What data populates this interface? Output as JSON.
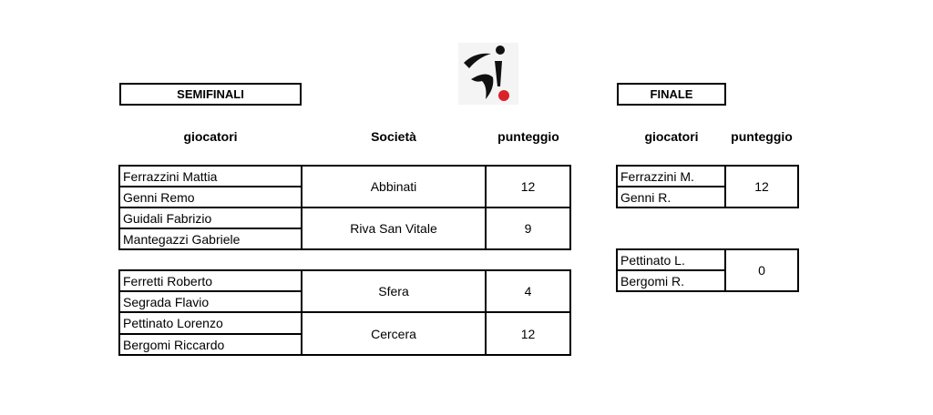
{
  "semifinali": {
    "title": "SEMIFINALI",
    "headers": {
      "giocatori": "giocatori",
      "societa": "Società",
      "punteggio": "punteggio"
    },
    "groups": [
      {
        "matches": [
          {
            "players": [
              "Ferrazzini Mattia",
              "Genni Remo"
            ],
            "societa": "Abbinati",
            "punteggio": "12"
          },
          {
            "players": [
              "Guidali Fabrizio",
              "Mantegazzi Gabriele"
            ],
            "societa": "Riva San Vitale",
            "punteggio": "9"
          }
        ]
      },
      {
        "matches": [
          {
            "players": [
              "Ferretti Roberto",
              "Segrada Flavio"
            ],
            "societa": "Sfera",
            "punteggio": "4"
          },
          {
            "players": [
              "Pettinato Lorenzo",
              "Bergomi Riccardo"
            ],
            "societa": "Cercera",
            "punteggio": "12"
          }
        ]
      }
    ]
  },
  "finale": {
    "title": "FINALE",
    "headers": {
      "giocatori": "giocatori",
      "punteggio": "punteggio"
    },
    "matches": [
      {
        "players": [
          "Ferrazzini M.",
          "Genni R."
        ],
        "punteggio": "12"
      },
      {
        "players": [
          "Pettinato L.",
          "Bergomi R."
        ],
        "punteggio": "0"
      }
    ]
  },
  "logo": {
    "icon": "bocce-player-logo",
    "ball_color": "#d9222a"
  }
}
